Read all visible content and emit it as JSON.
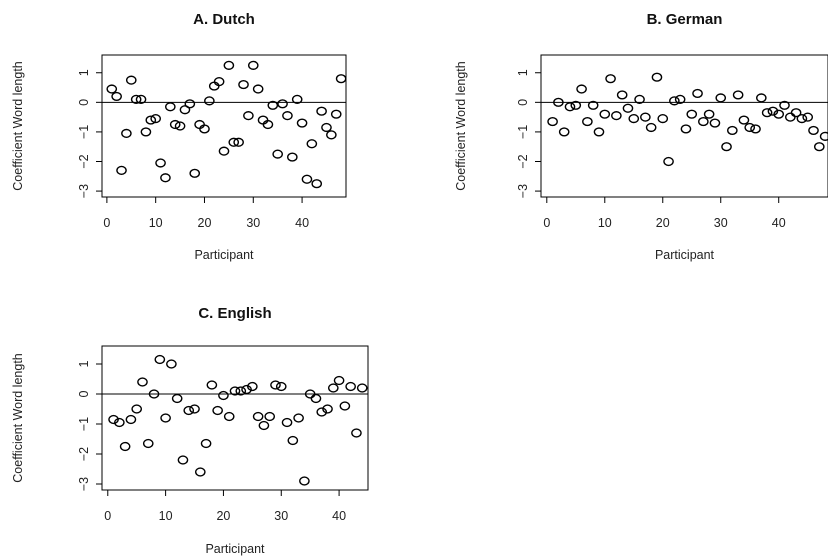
{
  "chart_data": [
    {
      "type": "scatter",
      "title": "A. Dutch",
      "xlabel": "Participant",
      "ylabel": "Coefficient Word length",
      "xlim": [
        -1,
        49
      ],
      "ylim": [
        -3.2,
        1.6
      ],
      "xticks": [
        0,
        10,
        20,
        30,
        40
      ],
      "yticks": [
        1,
        0,
        -1,
        -2,
        -3
      ],
      "ytick_labels": [
        "1",
        "0",
        "−1",
        "−2",
        "−3"
      ],
      "reference_line_y": 0,
      "x": [
        1,
        2,
        3,
        4,
        5,
        6,
        7,
        8,
        9,
        10,
        11,
        12,
        13,
        14,
        15,
        16,
        17,
        18,
        19,
        20,
        21,
        22,
        23,
        24,
        25,
        26,
        27,
        28,
        29,
        30,
        31,
        32,
        33,
        34,
        35,
        36,
        37,
        38,
        39,
        40,
        41,
        42,
        43,
        44,
        45,
        46,
        47,
        48
      ],
      "y": [
        0.45,
        0.2,
        -2.3,
        -1.05,
        0.75,
        0.1,
        0.1,
        -1.0,
        -0.6,
        -0.55,
        -2.05,
        -2.55,
        -0.15,
        -0.75,
        -0.8,
        -0.25,
        -0.05,
        -2.4,
        -0.75,
        -0.9,
        0.05,
        0.55,
        0.7,
        -1.65,
        1.25,
        -1.35,
        -1.35,
        0.6,
        -0.45,
        1.25,
        0.45,
        -0.6,
        -0.75,
        -0.1,
        -1.75,
        -0.05,
        -0.45,
        -1.85,
        0.1,
        -0.7,
        -2.6,
        -1.4,
        -2.75,
        -0.3,
        -0.85,
        -1.1,
        -0.4,
        0.8
      ]
    },
    {
      "type": "scatter",
      "title": "B. German",
      "xlabel": "Participant",
      "ylabel": "Coefficient Word length",
      "xlim": [
        -1,
        48.5
      ],
      "ylim": [
        -3.2,
        1.6
      ],
      "xticks": [
        0,
        10,
        20,
        30,
        40
      ],
      "yticks": [
        1,
        0,
        -1,
        -2,
        -3
      ],
      "ytick_labels": [
        "1",
        "0",
        "−1",
        "−2",
        "−3"
      ],
      "reference_line_y": 0,
      "x": [
        1,
        2,
        3,
        4,
        5,
        6,
        7,
        8,
        9,
        10,
        11,
        12,
        13,
        14,
        15,
        16,
        17,
        18,
        19,
        20,
        21,
        22,
        23,
        24,
        25,
        26,
        27,
        28,
        29,
        30,
        31,
        32,
        33,
        34,
        35,
        36,
        37,
        38,
        39,
        40,
        41,
        42,
        43,
        44,
        45,
        46,
        47,
        48
      ],
      "y": [
        -0.65,
        0.0,
        -1.0,
        -0.15,
        -0.1,
        0.45,
        -0.65,
        -0.1,
        -1.0,
        -0.4,
        0.8,
        -0.45,
        0.25,
        -0.2,
        -0.55,
        0.1,
        -0.5,
        -0.85,
        0.85,
        -0.55,
        -2.0,
        0.05,
        0.1,
        -0.9,
        -0.4,
        0.3,
        -0.65,
        -0.4,
        -0.7,
        0.15,
        -1.5,
        -0.95,
        0.25,
        -0.6,
        -0.85,
        -0.9,
        0.15,
        -0.35,
        -0.3,
        -0.4,
        -0.1,
        -0.5,
        -0.35,
        -0.55,
        -0.5,
        -0.95,
        -1.5,
        -1.15
      ]
    },
    {
      "type": "scatter",
      "title": "C. English",
      "xlabel": "Participant",
      "ylabel": "Coefficient Word length",
      "xlim": [
        -1,
        45
      ],
      "ylim": [
        -3.2,
        1.6
      ],
      "xticks": [
        0,
        10,
        20,
        30,
        40
      ],
      "yticks": [
        1,
        0,
        -1,
        -2,
        -3
      ],
      "ytick_labels": [
        "1",
        "0",
        "−1",
        "−2",
        "−3"
      ],
      "reference_line_y": 0,
      "x": [
        1,
        2,
        3,
        4,
        5,
        6,
        7,
        8,
        9,
        10,
        11,
        12,
        13,
        14,
        15,
        16,
        17,
        18,
        19,
        20,
        21,
        22,
        23,
        24,
        25,
        26,
        27,
        28,
        29,
        30,
        31,
        32,
        33,
        34,
        35,
        36,
        37,
        38,
        39,
        40,
        41,
        42,
        43,
        44
      ],
      "y": [
        -0.85,
        -0.95,
        -1.75,
        -0.85,
        -0.5,
        0.4,
        -1.65,
        0.0,
        1.15,
        -0.8,
        1.0,
        -0.15,
        -2.2,
        -0.55,
        -0.5,
        -2.6,
        -1.65,
        0.3,
        -0.55,
        -0.05,
        -0.75,
        0.1,
        0.1,
        0.15,
        0.25,
        -0.75,
        -1.05,
        -0.75,
        0.3,
        0.25,
        -0.95,
        -1.55,
        -0.8,
        -2.9,
        0.0,
        -0.15,
        -0.6,
        -0.5,
        0.2,
        0.45,
        -0.4,
        0.25,
        -1.3,
        0.2
      ]
    }
  ]
}
